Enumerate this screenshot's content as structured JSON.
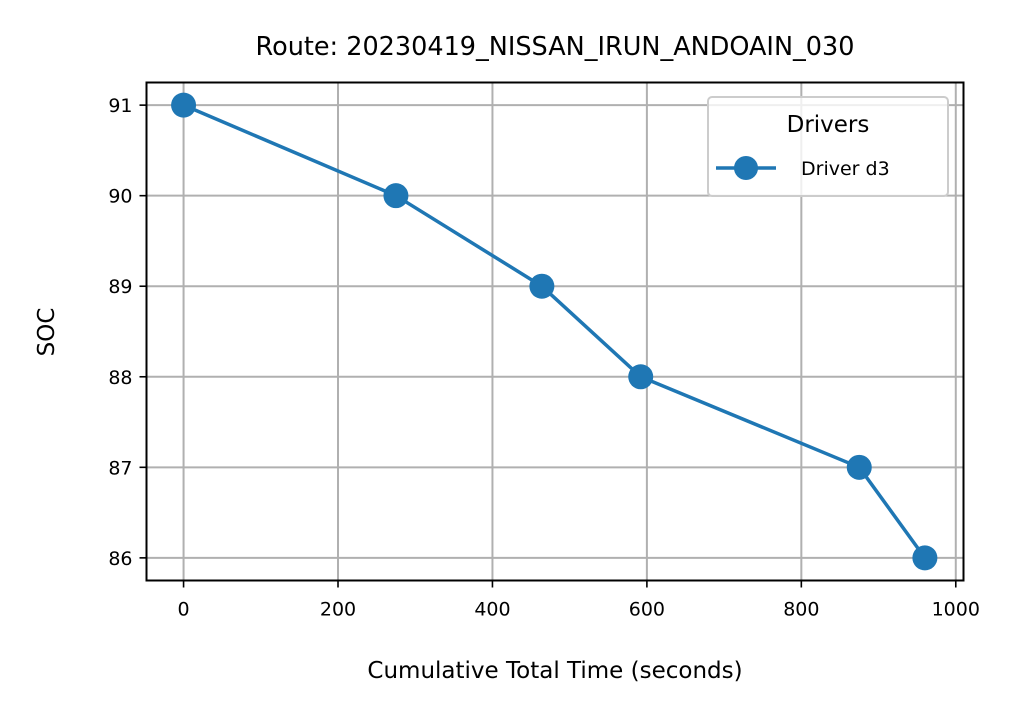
{
  "chart_data": {
    "type": "line",
    "title": "Route: 20230419_NISSAN_IRUN_ANDOAIN_030",
    "xlabel": "Cumulative Total Time (seconds)",
    "ylabel": "SOC",
    "xlim": [
      -48,
      1010
    ],
    "ylim": [
      85.75,
      91.25
    ],
    "xticks": [
      "0",
      "200",
      "400",
      "600",
      "800",
      "1000"
    ],
    "yticks": [
      "86",
      "87",
      "88",
      "89",
      "90",
      "91"
    ],
    "grid": true,
    "legend": {
      "title": "Drivers",
      "placement": "top-right"
    },
    "series": [
      {
        "name": "Driver d3",
        "color": "#1f77b4",
        "marker": "circle",
        "x": [
          0,
          275,
          464,
          592,
          875,
          960
        ],
        "y": [
          91,
          90,
          89,
          88,
          87,
          86
        ]
      }
    ]
  }
}
